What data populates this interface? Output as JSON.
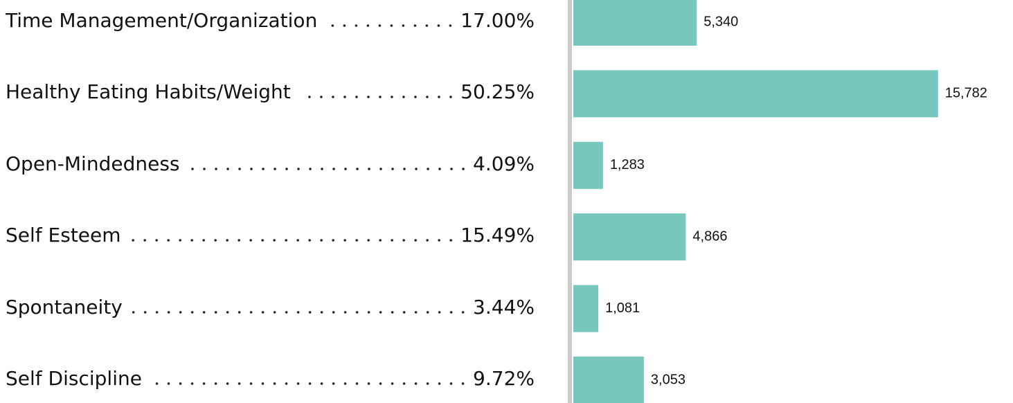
{
  "chart_data": {
    "type": "bar",
    "orientation": "horizontal",
    "categories": [
      "Time Management/Organization",
      "Healthy Eating Habits/Weight",
      "Open-Mindedness",
      "Self Esteem",
      "Spontaneity",
      "Self Discipline"
    ],
    "percentages": [
      17.0,
      50.25,
      4.09,
      15.49,
      3.44,
      9.72
    ],
    "percentage_labels": [
      "17.00%",
      "50.25%",
      "4.09%",
      "15.49%",
      "3.44%",
      "9.72%"
    ],
    "values": [
      5340,
      15782,
      1283,
      4866,
      1081,
      3053
    ],
    "value_labels": [
      "5,340",
      "15,782",
      "1,283",
      "4,866",
      "1,081",
      "3,053"
    ],
    "color": "#78c7be",
    "xlim": [
      0,
      16000
    ]
  }
}
